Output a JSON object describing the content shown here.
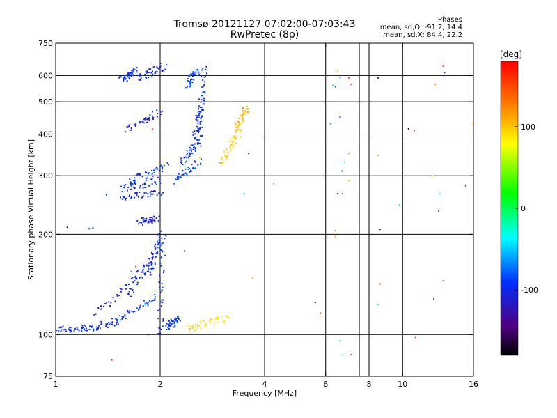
{
  "chart_data": {
    "type": "scatter",
    "title": "Tromsø 20121127 07:02:00-07:03:43",
    "subtitle": "RwPretec (8p)",
    "xlabel": "Frequency [MHz]",
    "ylabel": "Stationary phase Virtual Height [km]",
    "x_scale": "log",
    "y_scale": "log",
    "xlim": [
      1,
      16
    ],
    "ylim": [
      75,
      750
    ],
    "x_ticks": [
      "1",
      "2",
      "4",
      "6",
      "8",
      "10",
      "16"
    ],
    "x_tick_values": [
      1,
      2,
      4,
      6,
      8,
      10,
      16
    ],
    "y_ticks": [
      "75",
      "100",
      "200",
      "300",
      "400",
      "500",
      "600",
      "750"
    ],
    "y_tick_values": [
      75,
      100,
      200,
      300,
      400,
      500,
      600,
      750
    ],
    "x_gridlines": [
      2,
      4,
      6,
      7.5,
      8,
      10
    ],
    "y_gridlines": [
      100,
      200,
      300,
      400,
      500,
      600
    ],
    "phase_stats": {
      "heading": "Phases",
      "o_line": "mean, sd,O: -91.2, 14.4",
      "x_line": "mean, sd,X: 84.4, 22.2"
    },
    "colorbar": {
      "label": "[deg]",
      "range": [
        -180,
        180
      ],
      "ticks": [
        "100",
        "0",
        "-100"
      ],
      "tick_values": [
        100,
        0,
        -100
      ]
    },
    "traces": [
      {
        "f": [
          1.0,
          1.25
        ],
        "h": [
          104,
          104
        ],
        "phase": -105
      },
      {
        "f": [
          1.25,
          1.5
        ],
        "h": [
          104,
          110
        ],
        "phase": -108
      },
      {
        "f": [
          1.5,
          1.95
        ],
        "h": [
          110,
          130
        ],
        "phase": -100
      },
      {
        "f": [
          1.3,
          1.9
        ],
        "h": [
          115,
          165
        ],
        "phase": -115
      },
      {
        "f": [
          1.6,
          2.0
        ],
        "h": [
          130,
          185
        ],
        "phase": -105
      },
      {
        "f": [
          1.85,
          2.0
        ],
        "h": [
          150,
          200
        ],
        "phase": -110
      },
      {
        "f": [
          2.0,
          2.05
        ],
        "h": [
          100,
          205
        ],
        "phase": -100
      },
      {
        "f": [
          2.1,
          2.25
        ],
        "h": [
          105,
          112
        ],
        "phase": -100
      },
      {
        "f": [
          1.75,
          1.95
        ],
        "h": [
          218,
          222
        ],
        "phase": -115
      },
      {
        "f": [
          1.55,
          2.0
        ],
        "h": [
          255,
          270
        ],
        "phase": -110
      },
      {
        "f": [
          1.55,
          2.0
        ],
        "h": [
          275,
          290
        ],
        "phase": -105
      },
      {
        "f": [
          1.65,
          2.1
        ],
        "h": [
          290,
          320
        ],
        "phase": -100
      },
      {
        "f": [
          2.2,
          2.6
        ],
        "h": [
          290,
          330
        ],
        "phase": -95
      },
      {
        "f": [
          2.3,
          2.6
        ],
        "h": [
          330,
          380
        ],
        "phase": -100
      },
      {
        "f": [
          2.5,
          2.65
        ],
        "h": [
          380,
          500
        ],
        "phase": -105
      },
      {
        "f": [
          2.6,
          2.68
        ],
        "h": [
          400,
          640
        ],
        "phase": -102
      },
      {
        "f": [
          1.6,
          2.0
        ],
        "h": [
          410,
          470
        ],
        "phase": -115
      },
      {
        "f": [
          1.55,
          1.7
        ],
        "h": [
          580,
          620
        ],
        "phase": -105
      },
      {
        "f": [
          1.75,
          2.05
        ],
        "h": [
          590,
          640
        ],
        "phase": -110
      },
      {
        "f": [
          2.4,
          2.55
        ],
        "h": [
          560,
          620
        ],
        "phase": -95
      },
      {
        "f": [
          3.0,
          3.4
        ],
        "h": [
          330,
          410
        ],
        "phase": 100
      },
      {
        "f": [
          3.3,
          3.55
        ],
        "h": [
          410,
          480
        ],
        "phase": 110
      },
      {
        "f": [
          2.4,
          3.1
        ],
        "h": [
          104,
          112
        ],
        "phase": 95
      }
    ],
    "points": [
      {
        "f": 1.08,
        "h": 210,
        "phase": -100
      },
      {
        "f": 1.25,
        "h": 208,
        "phase": -105
      },
      {
        "f": 1.28,
        "h": 209,
        "phase": -98
      },
      {
        "f": 1.4,
        "h": 263,
        "phase": -110
      },
      {
        "f": 1.45,
        "h": 84,
        "phase": 170
      },
      {
        "f": 1.65,
        "h": 155,
        "phase": -60
      },
      {
        "f": 1.7,
        "h": 160,
        "phase": 140
      },
      {
        "f": 1.85,
        "h": 100,
        "phase": -140
      },
      {
        "f": 1.9,
        "h": 414,
        "phase": 160
      },
      {
        "f": 2.35,
        "h": 178,
        "phase": -150
      },
      {
        "f": 2.6,
        "h": 340,
        "phase": 95
      },
      {
        "f": 3.6,
        "h": 350,
        "phase": -150
      },
      {
        "f": 3.5,
        "h": 265,
        "phase": -30
      },
      {
        "f": 3.7,
        "h": 148,
        "phase": 110
      },
      {
        "f": 4.25,
        "h": 284,
        "phase": 20
      },
      {
        "f": 5.6,
        "h": 125,
        "phase": -160
      },
      {
        "f": 5.8,
        "h": 116,
        "phase": 140
      },
      {
        "f": 6.3,
        "h": 560,
        "phase": -10
      },
      {
        "f": 6.4,
        "h": 555,
        "phase": -90
      },
      {
        "f": 6.5,
        "h": 620,
        "phase": 110
      },
      {
        "f": 6.6,
        "h": 590,
        "phase": -60
      },
      {
        "f": 6.2,
        "h": 430,
        "phase": -80
      },
      {
        "f": 6.6,
        "h": 450,
        "phase": -95
      },
      {
        "f": 6.8,
        "h": 330,
        "phase": -50
      },
      {
        "f": 6.7,
        "h": 310,
        "phase": -90
      },
      {
        "f": 6.5,
        "h": 265,
        "phase": -120
      },
      {
        "f": 6.7,
        "h": 265,
        "phase": -60
      },
      {
        "f": 7.0,
        "h": 290,
        "phase": 100
      },
      {
        "f": 7.0,
        "h": 590,
        "phase": 150
      },
      {
        "f": 7.1,
        "h": 565,
        "phase": 160
      },
      {
        "f": 7.0,
        "h": 350,
        "phase": 120
      },
      {
        "f": 6.4,
        "h": 205,
        "phase": 140
      },
      {
        "f": 6.4,
        "h": 197,
        "phase": 120
      },
      {
        "f": 6.6,
        "h": 96,
        "phase": -50
      },
      {
        "f": 6.7,
        "h": 87,
        "phase": -40
      },
      {
        "f": 7.1,
        "h": 87,
        "phase": 150
      },
      {
        "f": 8.5,
        "h": 590,
        "phase": -140
      },
      {
        "f": 8.5,
        "h": 345,
        "phase": 110
      },
      {
        "f": 8.6,
        "h": 207,
        "phase": -140
      },
      {
        "f": 8.6,
        "h": 142,
        "phase": 150
      },
      {
        "f": 8.5,
        "h": 123,
        "phase": -40
      },
      {
        "f": 9.8,
        "h": 245,
        "phase": -20
      },
      {
        "f": 10.4,
        "h": 415,
        "phase": -160
      },
      {
        "f": 10.8,
        "h": 410,
        "phase": 160
      },
      {
        "f": 10.9,
        "h": 98,
        "phase": 150
      },
      {
        "f": 12.2,
        "h": 300,
        "phase": 90
      },
      {
        "f": 12.4,
        "h": 565,
        "phase": 130
      },
      {
        "f": 12.3,
        "h": 128,
        "phase": -80
      },
      {
        "f": 12.7,
        "h": 235,
        "phase": 150
      },
      {
        "f": 12.8,
        "h": 265,
        "phase": -40
      },
      {
        "f": 13.1,
        "h": 640,
        "phase": 150
      },
      {
        "f": 13.2,
        "h": 612,
        "phase": -110
      },
      {
        "f": 13.1,
        "h": 145,
        "phase": 150
      },
      {
        "f": 15.2,
        "h": 280,
        "phase": -150
      },
      {
        "f": 15.9,
        "h": 430,
        "phase": 90
      }
    ]
  }
}
